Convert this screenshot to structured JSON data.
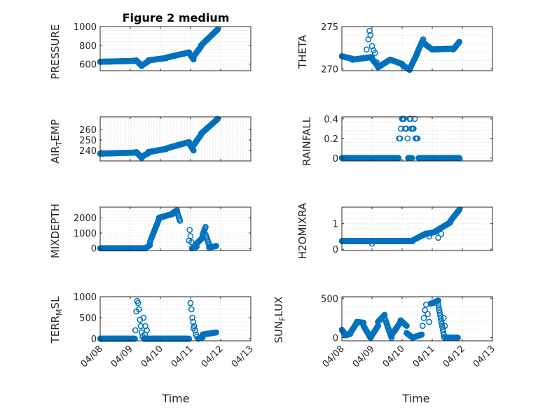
{
  "chart_data": [
    {
      "type": "scatter",
      "panel": "pressure",
      "title": "Figure 2 medium",
      "ylabel": "PRESSURE",
      "ylim": [
        530,
        1000
      ],
      "yticks": [
        600,
        800,
        1000
      ],
      "ytick_labels": [
        "600",
        "800",
        "1000"
      ],
      "marker_color": "#0072bd",
      "segments": [
        {
          "t": [
            0.0,
            1.2
          ],
          "y": [
            625,
            635
          ]
        },
        {
          "t": [
            1.2,
            1.38
          ],
          "y": [
            640,
            580
          ]
        },
        {
          "t": [
            1.38,
            1.6
          ],
          "y": [
            585,
            630
          ]
        },
        {
          "t": [
            1.6,
            2.2
          ],
          "y": [
            640,
            665
          ]
        },
        {
          "t": [
            2.2,
            2.95
          ],
          "y": [
            670,
            725
          ]
        },
        {
          "t": [
            2.95,
            3.1
          ],
          "y": [
            720,
            650
          ]
        },
        {
          "t": [
            3.1,
            3.35
          ],
          "y": [
            680,
            790
          ]
        },
        {
          "t": [
            3.35,
            3.9
          ],
          "y": [
            800,
            970
          ]
        }
      ]
    },
    {
      "type": "scatter",
      "panel": "theta",
      "title": "",
      "ylabel": "THETA",
      "ylim": [
        269.8,
        275
      ],
      "yticks": [
        270,
        275
      ],
      "ytick_labels": [
        "270",
        "275"
      ],
      "marker_color": "#0072bd",
      "segments": [
        {
          "t": [
            0.0,
            0.35
          ],
          "y": [
            271.5,
            271.2
          ]
        },
        {
          "t": [
            0.35,
            1.0
          ],
          "y": [
            271.1,
            271.4
          ]
        },
        {
          "t": [
            1.0,
            1.2
          ],
          "y": [
            271.2,
            270.3
          ]
        },
        {
          "t": [
            1.2,
            1.6
          ],
          "y": [
            270.2,
            271.1
          ]
        },
        {
          "t": [
            1.6,
            2.0
          ],
          "y": [
            271.1,
            270.6
          ]
        },
        {
          "t": [
            2.0,
            2.25
          ],
          "y": [
            270.5,
            269.9
          ]
        },
        {
          "t": [
            2.25,
            2.5
          ],
          "y": [
            270.0,
            271.8
          ]
        },
        {
          "t": [
            2.5,
            2.7
          ],
          "y": [
            271.9,
            273.5
          ]
        },
        {
          "t": [
            2.7,
            3.0
          ],
          "y": [
            273.1,
            272.3
          ]
        },
        {
          "t": [
            3.0,
            3.7
          ],
          "y": [
            272.3,
            272.4
          ]
        },
        {
          "t": [
            3.7,
            3.9
          ],
          "y": [
            272.3,
            273.2
          ]
        }
      ],
      "points": [
        {
          "t": 0.92,
          "y": 274.5
        },
        {
          "t": 0.95,
          "y": 274.0
        },
        {
          "t": 0.88,
          "y": 273.5
        },
        {
          "t": 1.0,
          "y": 272.7
        },
        {
          "t": 1.05,
          "y": 272.2
        },
        {
          "t": 1.1,
          "y": 271.9
        },
        {
          "t": 0.82,
          "y": 272.3
        },
        {
          "t": 1.15,
          "y": 270.8
        }
      ]
    },
    {
      "type": "scatter",
      "panel": "air_temp",
      "title": "",
      "ylabel_main": "AIR",
      "ylabel_sub": "T",
      "ylabel_rest": "EMP",
      "ylim": [
        230,
        272
      ],
      "yticks": [
        240,
        250,
        260
      ],
      "ytick_labels": [
        "240",
        "250",
        "260"
      ],
      "marker_color": "#0072bd",
      "segments": [
        {
          "t": [
            0.0,
            1.2
          ],
          "y": [
            237,
            238
          ]
        },
        {
          "t": [
            1.2,
            1.38
          ],
          "y": [
            238.5,
            233
          ]
        },
        {
          "t": [
            1.38,
            1.6
          ],
          "y": [
            234,
            237.5
          ]
        },
        {
          "t": [
            1.6,
            2.2
          ],
          "y": [
            238.5,
            241.5
          ]
        },
        {
          "t": [
            2.2,
            2.95
          ],
          "y": [
            242,
            248
          ]
        },
        {
          "t": [
            2.95,
            3.1
          ],
          "y": [
            247,
            240
          ]
        },
        {
          "t": [
            3.1,
            3.35
          ],
          "y": [
            245,
            255
          ]
        },
        {
          "t": [
            3.35,
            3.9
          ],
          "y": [
            256,
            270
          ]
        }
      ]
    },
    {
      "type": "scatter",
      "panel": "rainfall",
      "title": "",
      "ylabel": "RAINFALL",
      "ylim": [
        -0.03,
        0.42
      ],
      "yticks": [
        0,
        0.2,
        0.4
      ],
      "ytick_labels": [
        "0",
        "0.2",
        "0.4"
      ],
      "marker_color": "#0072bd",
      "segments": [
        {
          "t": [
            0.0,
            1.88
          ],
          "y": [
            0,
            0
          ]
        },
        {
          "t": [
            2.2,
            2.28
          ],
          "y": [
            0,
            0
          ]
        },
        {
          "t": [
            2.55,
            3.9
          ],
          "y": [
            0,
            0
          ]
        }
      ],
      "points": [
        {
          "t": 1.9,
          "y": 0.2
        },
        {
          "t": 1.93,
          "y": 0.2
        },
        {
          "t": 1.96,
          "y": 0.3
        },
        {
          "t": 2.0,
          "y": 0.4
        },
        {
          "t": 2.03,
          "y": 0.4
        },
        {
          "t": 2.06,
          "y": 0.4
        },
        {
          "t": 2.1,
          "y": 0.3
        },
        {
          "t": 2.14,
          "y": 0.3
        },
        {
          "t": 2.18,
          "y": 0.2
        },
        {
          "t": 2.25,
          "y": 0.4
        },
        {
          "t": 2.28,
          "y": 0.4
        },
        {
          "t": 2.31,
          "y": 0.3
        },
        {
          "t": 2.35,
          "y": 0.3
        },
        {
          "t": 2.38,
          "y": 0.3
        },
        {
          "t": 2.42,
          "y": 0.4
        },
        {
          "t": 2.45,
          "y": 0.2
        },
        {
          "t": 2.48,
          "y": 0.2
        },
        {
          "t": 2.51,
          "y": 0.2
        },
        {
          "t": 2.3,
          "y": 0
        },
        {
          "t": 2.33,
          "y": 0
        }
      ]
    },
    {
      "type": "scatter",
      "panel": "mixdepth",
      "title": "",
      "ylabel": "MIXDEPTH",
      "ylim": [
        -150,
        2700
      ],
      "yticks": [
        0,
        1000,
        2000
      ],
      "ytick_labels": [
        "0",
        "1000",
        "2000"
      ],
      "marker_color": "#0072bd",
      "segments": [
        {
          "t": [
            0.0,
            1.5
          ],
          "y": [
            0,
            0
          ]
        },
        {
          "t": [
            1.5,
            1.65
          ],
          "y": [
            0,
            200
          ]
        },
        {
          "t": [
            1.65,
            1.95
          ],
          "y": [
            400,
            1900
          ]
        },
        {
          "t": [
            1.95,
            2.4
          ],
          "y": [
            2000,
            2250
          ]
        },
        {
          "t": [
            2.4,
            2.55
          ],
          "y": [
            2300,
            2500
          ]
        },
        {
          "t": [
            2.55,
            2.65
          ],
          "y": [
            2400,
            1800
          ]
        },
        {
          "t": [
            3.05,
            3.2
          ],
          "y": [
            0,
            100
          ]
        },
        {
          "t": [
            3.2,
            3.4
          ],
          "y": [
            300,
            700
          ]
        },
        {
          "t": [
            3.4,
            3.5
          ],
          "y": [
            900,
            1400
          ]
        },
        {
          "t": [
            3.5,
            3.62
          ],
          "y": [
            900,
            200
          ]
        },
        {
          "t": [
            3.62,
            3.85
          ],
          "y": [
            50,
            150
          ]
        }
      ],
      "points": [
        {
          "t": 2.97,
          "y": 1200
        },
        {
          "t": 3.0,
          "y": 800
        },
        {
          "t": 3.03,
          "y": 400
        },
        {
          "t": 2.95,
          "y": 500
        }
      ]
    },
    {
      "type": "scatter",
      "panel": "h2omixra",
      "title": "",
      "ylabel": "H2OMIXRA",
      "ylim": [
        -0.05,
        1.65
      ],
      "yticks": [
        0,
        1
      ],
      "ytick_labels": [
        "0",
        "1"
      ],
      "marker_color": "#0072bd",
      "segments": [
        {
          "t": [
            0.0,
            2.35
          ],
          "y": [
            0.32,
            0.32
          ]
        },
        {
          "t": [
            2.35,
            2.8
          ],
          "y": [
            0.35,
            0.62
          ]
        },
        {
          "t": [
            2.8,
            3.1
          ],
          "y": [
            0.6,
            0.68
          ]
        },
        {
          "t": [
            3.1,
            3.6
          ],
          "y": [
            0.7,
            1.05
          ]
        },
        {
          "t": [
            3.6,
            3.9
          ],
          "y": [
            1.1,
            1.55
          ]
        }
      ],
      "points": [
        {
          "t": 1.0,
          "y": 0.22
        },
        {
          "t": 2.9,
          "y": 0.5
        },
        {
          "t": 3.2,
          "y": 0.45
        },
        {
          "t": 3.3,
          "y": 0.6
        }
      ]
    },
    {
      "type": "scatter",
      "panel": "terr_msl",
      "title": "",
      "ylabel_main": "TERR",
      "ylabel_sub": "M",
      "ylabel_rest": "SL",
      "ylim": [
        -50,
        1000
      ],
      "yticks": [
        0,
        500,
        1000
      ],
      "ytick_labels": [
        "0",
        "500",
        "1000"
      ],
      "marker_color": "#0072bd",
      "segments": [
        {
          "t": [
            0.0,
            1.15
          ],
          "y": [
            0,
            0
          ]
        },
        {
          "t": [
            1.45,
            2.9
          ],
          "y": [
            0,
            0
          ]
        },
        {
          "t": [
            3.25,
            3.4
          ],
          "y": [
            0,
            30
          ]
        },
        {
          "t": [
            3.4,
            3.85
          ],
          "y": [
            100,
            150
          ]
        }
      ],
      "points": [
        {
          "t": 1.17,
          "y": 200
        },
        {
          "t": 1.2,
          "y": 650
        },
        {
          "t": 1.23,
          "y": 900
        },
        {
          "t": 1.26,
          "y": 850
        },
        {
          "t": 1.29,
          "y": 700
        },
        {
          "t": 1.32,
          "y": 450
        },
        {
          "t": 1.35,
          "y": 300
        },
        {
          "t": 1.38,
          "y": 150
        },
        {
          "t": 1.41,
          "y": 50
        },
        {
          "t": 1.44,
          "y": 500
        },
        {
          "t": 1.5,
          "y": 300
        },
        {
          "t": 1.55,
          "y": 200
        },
        {
          "t": 1.48,
          "y": 100
        },
        {
          "t": 2.95,
          "y": 0
        },
        {
          "t": 3.0,
          "y": 850
        },
        {
          "t": 3.03,
          "y": 700
        },
        {
          "t": 3.06,
          "y": 500
        },
        {
          "t": 3.09,
          "y": 400
        },
        {
          "t": 3.12,
          "y": 300
        },
        {
          "t": 3.15,
          "y": 200
        },
        {
          "t": 3.18,
          "y": 100
        },
        {
          "t": 3.21,
          "y": 50
        },
        {
          "t": 3.1,
          "y": 250
        }
      ]
    },
    {
      "type": "scatter",
      "panel": "sun_flux",
      "title": "",
      "ylabel_main": "SUN",
      "ylabel_sub": "F",
      "ylabel_rest": "LUX",
      "ylim": [
        -40,
        520
      ],
      "yticks": [
        0,
        500
      ],
      "ytick_labels": [
        "0",
        "500"
      ],
      "marker_color": "#0072bd",
      "segments": [
        {
          "t": [
            0.0,
            0.12
          ],
          "y": [
            100,
            40
          ]
        },
        {
          "t": [
            0.12,
            0.28
          ],
          "y": [
            30,
            50
          ]
        },
        {
          "t": [
            0.28,
            0.5
          ],
          "y": [
            60,
            190
          ]
        },
        {
          "t": [
            0.5,
            0.72
          ],
          "y": [
            200,
            190
          ]
        },
        {
          "t": [
            0.72,
            0.95
          ],
          "y": [
            150,
            0
          ]
        },
        {
          "t": [
            0.95,
            1.2
          ],
          "y": [
            0,
            150
          ]
        },
        {
          "t": [
            1.2,
            1.42
          ],
          "y": [
            200,
            290
          ]
        },
        {
          "t": [
            1.42,
            1.65
          ],
          "y": [
            250,
            0
          ]
        },
        {
          "t": [
            1.65,
            1.95
          ],
          "y": [
            30,
            200
          ]
        },
        {
          "t": [
            1.95,
            2.15
          ],
          "y": [
            220,
            150
          ]
        },
        {
          "t": [
            2.15,
            2.35
          ],
          "y": [
            60,
            0
          ]
        },
        {
          "t": [
            2.35,
            2.65
          ],
          "y": [
            0,
            40
          ]
        },
        {
          "t": [
            2.95,
            3.2
          ],
          "y": [
            430,
            470
          ]
        },
        {
          "t": [
            3.2,
            3.4
          ],
          "y": [
            420,
            0
          ]
        },
        {
          "t": [
            3.45,
            3.85
          ],
          "y": [
            0,
            0
          ]
        }
      ],
      "points": [
        {
          "t": 2.68,
          "y": 150
        },
        {
          "t": 2.72,
          "y": 250
        },
        {
          "t": 2.76,
          "y": 350
        },
        {
          "t": 2.8,
          "y": 420
        },
        {
          "t": 2.85,
          "y": 300
        },
        {
          "t": 2.9,
          "y": 200
        },
        {
          "t": 3.42,
          "y": 150
        },
        {
          "t": 3.38,
          "y": 250
        }
      ]
    }
  ],
  "x_axis": {
    "label": "Time",
    "tick_labels": [
      "04/08",
      "04/09",
      "04/10",
      "04/11",
      "04/12",
      "04/13"
    ],
    "range_days": [
      0,
      5
    ]
  },
  "labels": {
    "title": "Figure 2 medium",
    "xlabel": "Time",
    "pressure": "PRESSURE",
    "theta": "THETA",
    "air_main": "AIR",
    "air_sub": "T",
    "air_rest": "EMP",
    "rainfall": "RAINFALL",
    "mixdepth": "MIXDEPTH",
    "h2omixra": "H2OMIXRA",
    "terr_main": "TERR",
    "terr_sub": "M",
    "terr_rest": "SL",
    "sun_main": "SUN",
    "sun_sub": "F",
    "sun_rest": "LUX"
  }
}
